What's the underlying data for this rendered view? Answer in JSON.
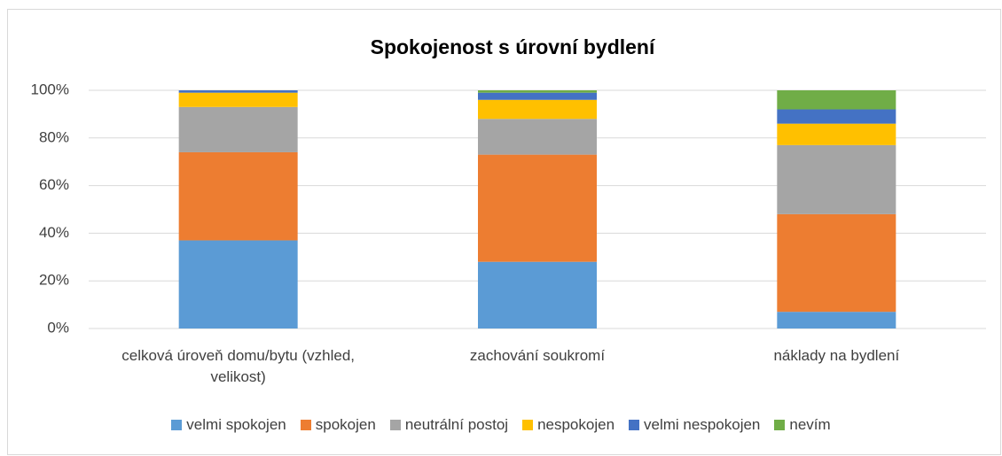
{
  "chart_data": {
    "type": "stacked_bar",
    "title": "Spokojenost s úrovní bydlení",
    "categories": [
      "celková úroveň domu/bytu (vzhled, velikost)",
      "zachování soukromí",
      "náklady na bydlení"
    ],
    "series": [
      {
        "name": "velmi spokojen",
        "color": "#5b9bd5",
        "values": [
          37,
          28,
          7
        ]
      },
      {
        "name": "spokojen",
        "color": "#ed7d31",
        "values": [
          37,
          45,
          41
        ]
      },
      {
        "name": "neutrální postoj",
        "color": "#a5a5a5",
        "values": [
          19,
          15,
          29
        ]
      },
      {
        "name": "nespokojen",
        "color": "#ffc000",
        "values": [
          6,
          8,
          9
        ]
      },
      {
        "name": "velmi nespokojen",
        "color": "#4472c4",
        "values": [
          1,
          3,
          6
        ]
      },
      {
        "name": "nevím",
        "color": "#70ad47",
        "values": [
          0,
          1,
          8
        ]
      }
    ],
    "ylim": [
      0,
      100
    ],
    "yticks": [
      {
        "value": 0,
        "label": "0%"
      },
      {
        "value": 20,
        "label": "20%"
      },
      {
        "value": 40,
        "label": "40%"
      },
      {
        "value": 60,
        "label": "60%"
      },
      {
        "value": 80,
        "label": "80%"
      },
      {
        "value": 100,
        "label": "100%"
      }
    ],
    "grid": true,
    "legend": "bottom"
  }
}
